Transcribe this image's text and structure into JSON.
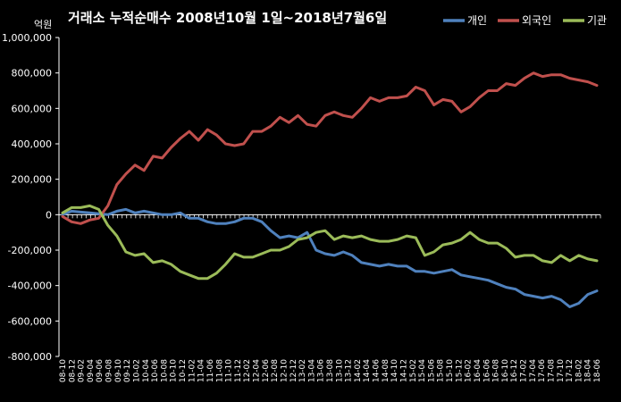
{
  "chart_data": {
    "type": "line",
    "title": "거래소 누적순매수 2008년10월 1일~2018년7월6일",
    "ylabel": "억원",
    "ylim": [
      -800000,
      1000000
    ],
    "yticks": [
      1000000,
      800000,
      600000,
      400000,
      200000,
      0,
      -200000,
      -400000,
      -600000,
      -800000
    ],
    "ytick_labels": [
      "1,000,000",
      "800,000",
      "600,000",
      "400,000",
      "200,000",
      "0",
      "-200,000",
      "-400,000",
      "-600,000",
      "-800,000"
    ],
    "x_tick_labels": [
      "08-10",
      "08-12",
      "09-02",
      "09-04",
      "09-06",
      "09-08",
      "09-10",
      "09-12",
      "10-02",
      "10-04",
      "10-06",
      "10-08",
      "10-10",
      "10-12",
      "11-02",
      "11-04",
      "11-06",
      "11-08",
      "11-10",
      "11-12",
      "12-02",
      "12-04",
      "12-06",
      "12-08",
      "12-10",
      "12-12",
      "13-02",
      "13-04",
      "13-06",
      "13-08",
      "13-10",
      "13-12",
      "14-02",
      "14-04",
      "14-06",
      "14-08",
      "14-10",
      "14-12",
      "15-02",
      "15-04",
      "15-06",
      "15-08",
      "15-10",
      "15-12",
      "16-02",
      "16-04",
      "16-06",
      "16-08",
      "16-10",
      "16-12",
      "17-02",
      "17-04",
      "17-06",
      "17-08",
      "17-10",
      "17-12",
      "18-02",
      "18-04",
      "18-06"
    ],
    "grid": false,
    "legend_position": "top-right",
    "series": [
      {
        "name": "개인",
        "color": "#4f81bd",
        "values": [
          0,
          20000,
          15000,
          10000,
          5000,
          0,
          20000,
          30000,
          10000,
          20000,
          10000,
          0,
          0,
          10000,
          -20000,
          -20000,
          -40000,
          -50000,
          -50000,
          -40000,
          -20000,
          -20000,
          -40000,
          -90000,
          -130000,
          -120000,
          -130000,
          -100000,
          -200000,
          -220000,
          -230000,
          -210000,
          -230000,
          -270000,
          -280000,
          -290000,
          -280000,
          -290000,
          -290000,
          -320000,
          -320000,
          -330000,
          -320000,
          -310000,
          -340000,
          -350000,
          -360000,
          -370000,
          -390000,
          -410000,
          -420000,
          -450000,
          -460000,
          -470000,
          -460000,
          -480000,
          -520000,
          -500000,
          -450000,
          -430000
        ]
      },
      {
        "name": "외국인",
        "color": "#c0504d",
        "values": [
          -10000,
          -40000,
          -50000,
          -30000,
          -20000,
          50000,
          170000,
          230000,
          280000,
          250000,
          330000,
          320000,
          380000,
          430000,
          470000,
          420000,
          480000,
          450000,
          400000,
          390000,
          400000,
          470000,
          470000,
          500000,
          550000,
          520000,
          560000,
          510000,
          500000,
          560000,
          580000,
          560000,
          550000,
          600000,
          660000,
          640000,
          660000,
          660000,
          670000,
          720000,
          700000,
          620000,
          650000,
          640000,
          580000,
          610000,
          660000,
          700000,
          700000,
          740000,
          730000,
          770000,
          800000,
          780000,
          790000,
          790000,
          770000,
          760000,
          750000,
          730000
        ]
      },
      {
        "name": "기관",
        "color": "#9bbb59",
        "values": [
          10000,
          40000,
          40000,
          50000,
          30000,
          -60000,
          -120000,
          -210000,
          -230000,
          -220000,
          -270000,
          -260000,
          -280000,
          -320000,
          -340000,
          -360000,
          -360000,
          -330000,
          -280000,
          -220000,
          -240000,
          -240000,
          -220000,
          -200000,
          -200000,
          -180000,
          -140000,
          -130000,
          -100000,
          -90000,
          -140000,
          -120000,
          -130000,
          -120000,
          -140000,
          -150000,
          -150000,
          -140000,
          -120000,
          -130000,
          -230000,
          -210000,
          -170000,
          -160000,
          -140000,
          -100000,
          -140000,
          -160000,
          -160000,
          -190000,
          -240000,
          -230000,
          -230000,
          -260000,
          -270000,
          -230000,
          -260000,
          -230000,
          -250000,
          -260000
        ]
      }
    ]
  }
}
